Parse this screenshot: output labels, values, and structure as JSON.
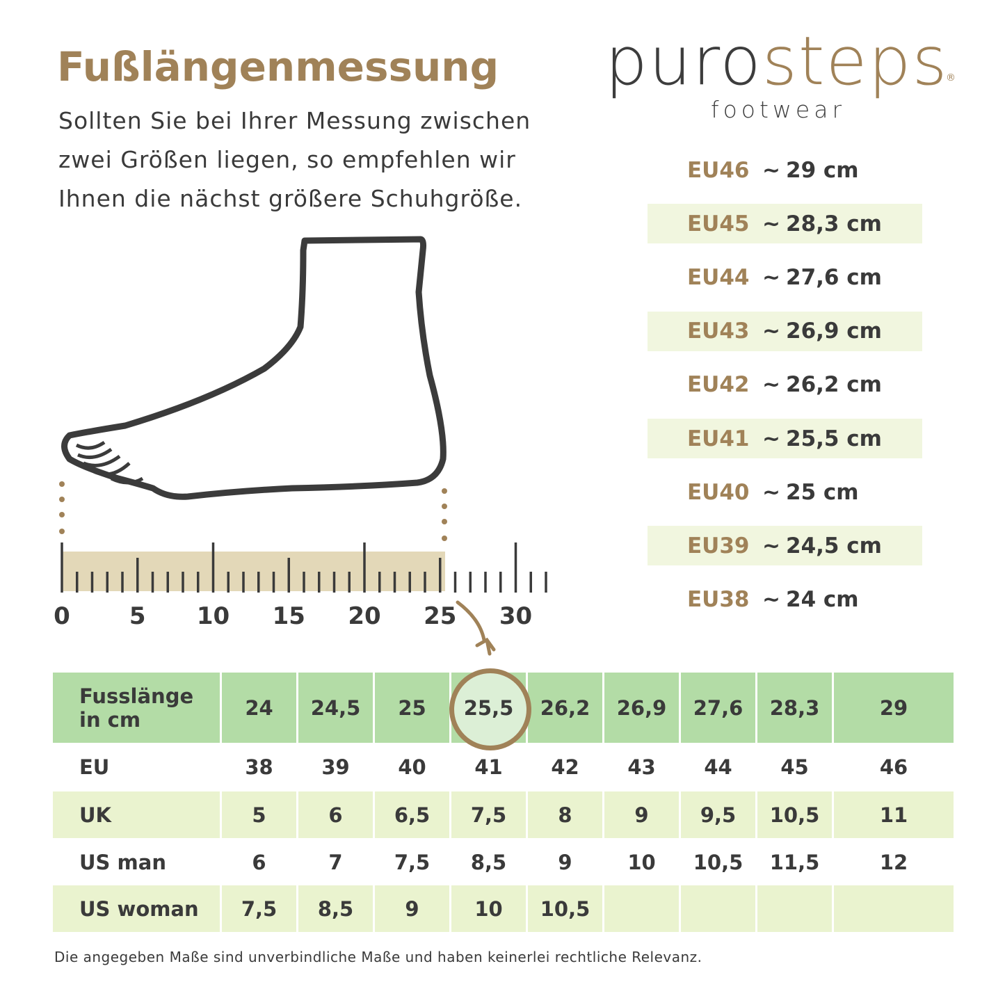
{
  "title": "Fußlängenmessung",
  "intro": [
    "Sollten Sie bei Ihrer Messung zwischen",
    "zwei Größen liegen, so empfehlen wir",
    "Ihnen die nächst größere Schuhgröße."
  ],
  "logo": {
    "part1": "puro",
    "part2": "steps",
    "registered": "®",
    "sub": "footwear"
  },
  "colors": {
    "accent": "#a08258",
    "text": "#3a3a3a",
    "header_green": "#b3dca6",
    "row_band": "#eef4d4",
    "ruler_fill": "#e3d8b8"
  },
  "size_list": [
    {
      "eu": "EU46",
      "tilde": "~",
      "cm": "29 cm"
    },
    {
      "eu": "EU45",
      "tilde": "~",
      "cm": "28,3 cm"
    },
    {
      "eu": "EU44",
      "tilde": "~",
      "cm": "27,6 cm"
    },
    {
      "eu": "EU43",
      "tilde": "~",
      "cm": "26,9 cm"
    },
    {
      "eu": "EU42",
      "tilde": "~",
      "cm": "26,2 cm"
    },
    {
      "eu": "EU41",
      "tilde": "~",
      "cm": "25,5 cm"
    },
    {
      "eu": "EU40",
      "tilde": "~",
      "cm": "25 cm"
    },
    {
      "eu": "EU39",
      "tilde": "~",
      "cm": "24,5 cm"
    },
    {
      "eu": "EU38",
      "tilde": "~",
      "cm": "24 cm"
    }
  ],
  "ruler": {
    "labels": [
      "0",
      "5",
      "10",
      "15",
      "20",
      "25",
      "30"
    ],
    "max_cm": 32,
    "measured_cm": 25.5
  },
  "table": {
    "highlight_column": 3,
    "rows": [
      {
        "label": "Fusslänge in cm",
        "values": [
          "24",
          "24,5",
          "25",
          "25,5",
          "26,2",
          "26,9",
          "27,6",
          "28,3",
          "29"
        ]
      },
      {
        "label": "EU",
        "values": [
          "38",
          "39",
          "40",
          "41",
          "42",
          "43",
          "44",
          "45",
          "46"
        ]
      },
      {
        "label": "UK",
        "values": [
          "5",
          "6",
          "6,5",
          "7,5",
          "8",
          "9",
          "9,5",
          "10,5",
          "11"
        ]
      },
      {
        "label": "US man",
        "values": [
          "6",
          "7",
          "7,5",
          "8,5",
          "9",
          "10",
          "10,5",
          "11,5",
          "12"
        ]
      },
      {
        "label": "US woman",
        "values": [
          "7,5",
          "8,5",
          "9",
          "10",
          "10,5",
          "",
          "",
          "",
          ""
        ]
      }
    ]
  },
  "footnote": "Die angegeben Maße sind unverbindliche Maße und haben keinerlei rechtliche Relevanz."
}
